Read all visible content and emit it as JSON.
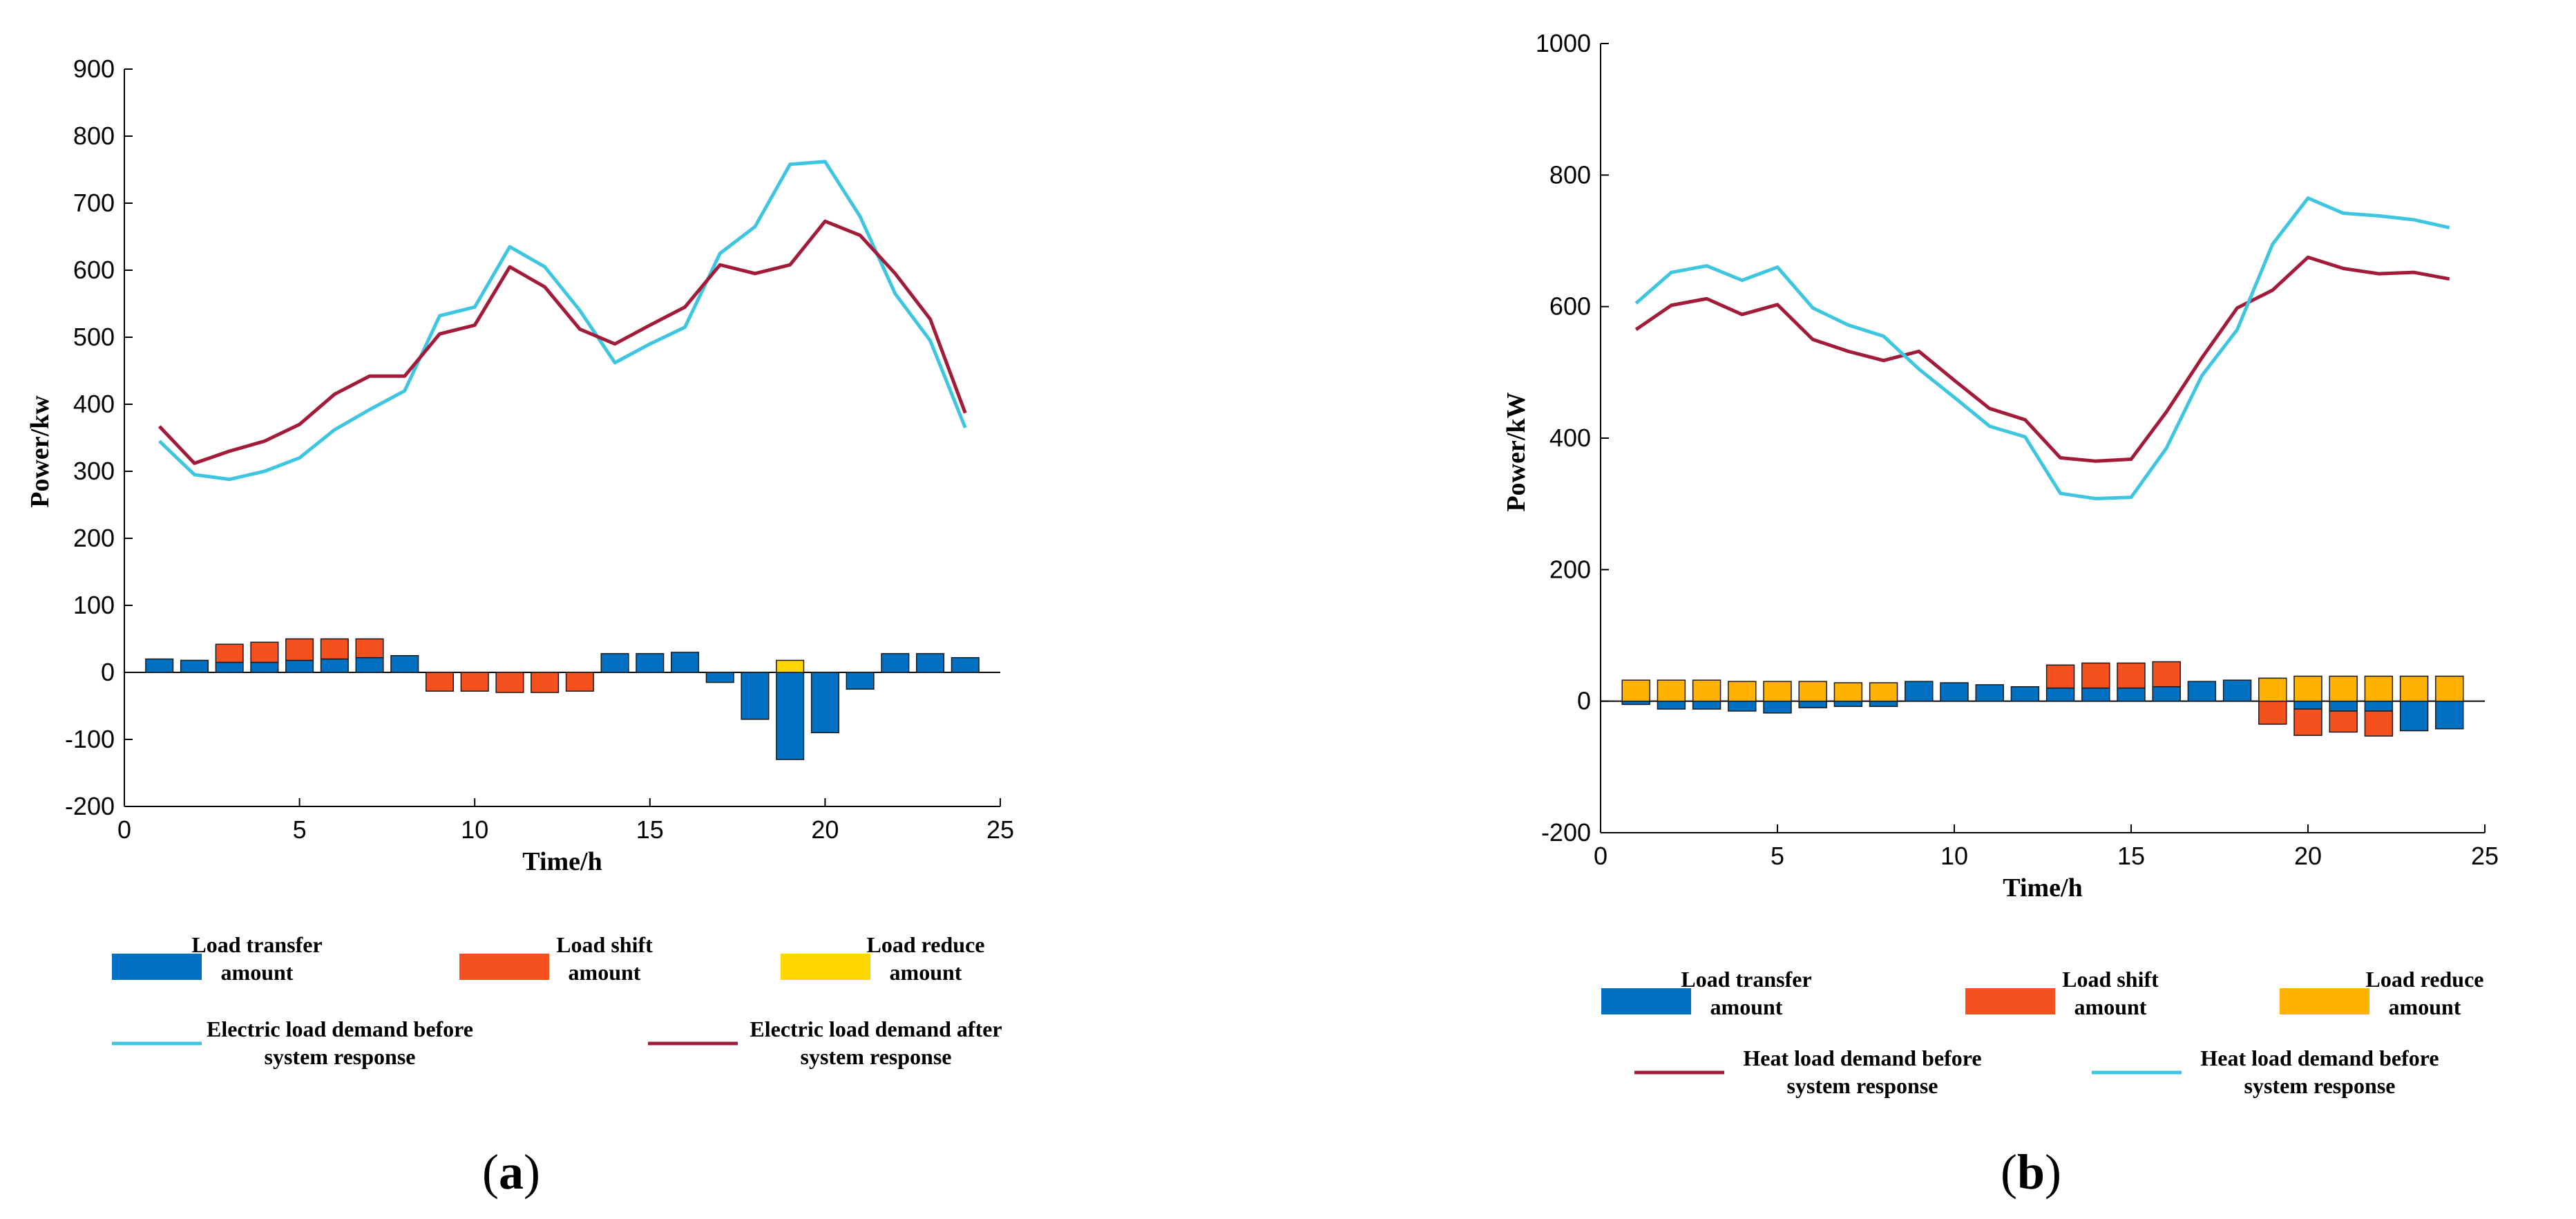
{
  "colors": {
    "transfer": "#0070C0",
    "shift": "#F4511E",
    "reduce_a": "#FFD700",
    "reduce_b": "#FFB300",
    "before": "#3EC6E0",
    "after": "#A21C3A"
  },
  "chart_data": [
    {
      "type": "bar",
      "panel": "a",
      "panel_label_open": "(",
      "panel_label_letter": "a",
      "panel_label_close": ")",
      "xlabel": "Time/h",
      "ylabel": "Power/kw",
      "xlim": [
        0,
        25
      ],
      "ylim": [
        -200,
        900
      ],
      "xticks": [
        0,
        5,
        10,
        15,
        20,
        25
      ],
      "yticks": [
        -200,
        -100,
        0,
        100,
        200,
        300,
        400,
        500,
        600,
        700,
        800,
        900
      ],
      "x": [
        1,
        2,
        3,
        4,
        5,
        6,
        7,
        8,
        9,
        10,
        11,
        12,
        13,
        14,
        15,
        16,
        17,
        18,
        19,
        20,
        21,
        22,
        23,
        24
      ],
      "stacked_series": [
        {
          "name": "Load transfer amount",
          "color_key": "transfer",
          "values": [
            20,
            18,
            15,
            15,
            18,
            20,
            22,
            25,
            0,
            0,
            0,
            0,
            0,
            28,
            28,
            30,
            -15,
            -70,
            -130,
            -90,
            -25,
            28,
            28,
            22
          ]
        },
        {
          "name": "Load shift amount",
          "color_key": "shift",
          "values": [
            0,
            0,
            27,
            30,
            32,
            30,
            28,
            0,
            -28,
            -28,
            -30,
            -30,
            -28,
            0,
            0,
            0,
            0,
            0,
            0,
            0,
            0,
            0,
            0,
            0
          ]
        },
        {
          "name": "Load reduce amount",
          "color_key": "reduce_a",
          "values": [
            0,
            0,
            0,
            0,
            0,
            0,
            0,
            0,
            0,
            0,
            0,
            0,
            0,
            0,
            0,
            0,
            0,
            0,
            18,
            0,
            0,
            0,
            0,
            0
          ]
        }
      ],
      "line_series": [
        {
          "name": "Electric load demand before system response",
          "color_key": "before",
          "values": [
            345,
            295,
            288,
            300,
            320,
            362,
            392,
            420,
            532,
            545,
            635,
            605,
            540,
            462,
            490,
            515,
            625,
            665,
            758,
            762,
            680,
            565,
            495,
            365
          ]
        },
        {
          "name": "Electric load demand after system response",
          "color_key": "after",
          "values": [
            367,
            312,
            330,
            345,
            370,
            415,
            442,
            442,
            505,
            518,
            605,
            575,
            512,
            490,
            518,
            545,
            608,
            595,
            608,
            673,
            652,
            595,
            527,
            387
          ]
        }
      ],
      "legend": [
        {
          "lines": [
            "Load transfer",
            "amount"
          ],
          "kind": "bar",
          "color_key": "transfer"
        },
        {
          "lines": [
            "Load shift",
            "amount"
          ],
          "kind": "bar",
          "color_key": "shift"
        },
        {
          "lines": [
            "Load reduce",
            "amount"
          ],
          "kind": "bar",
          "color_key": "reduce_a"
        },
        {
          "lines": [
            "Electric load demand before",
            "system response"
          ],
          "kind": "line",
          "color_key": "before"
        },
        {
          "lines": [
            "Electric load demand after",
            "system response"
          ],
          "kind": "line",
          "color_key": "after"
        }
      ]
    },
    {
      "type": "bar",
      "panel": "b",
      "panel_label_open": "(",
      "panel_label_letter": "b",
      "panel_label_close": ")",
      "xlabel": "Time/h",
      "ylabel": "Power/kW",
      "xlim": [
        0,
        25
      ],
      "ylim": [
        -200,
        1000
      ],
      "xticks": [
        0,
        5,
        10,
        15,
        20,
        25
      ],
      "yticks": [
        -200,
        0,
        200,
        400,
        600,
        800,
        1000
      ],
      "x": [
        1,
        2,
        3,
        4,
        5,
        6,
        7,
        8,
        9,
        10,
        11,
        12,
        13,
        14,
        15,
        16,
        17,
        18,
        19,
        20,
        21,
        22,
        23,
        24
      ],
      "stacked_series": [
        {
          "name": "Load transfer amount",
          "color_key": "transfer",
          "values": [
            -5,
            -12,
            -12,
            -15,
            -18,
            -10,
            -8,
            -8,
            30,
            28,
            25,
            22,
            20,
            20,
            20,
            22,
            30,
            32,
            0,
            -12,
            -15,
            -15,
            -45,
            -42
          ]
        },
        {
          "name": "Load shift amount",
          "color_key": "shift",
          "values": [
            0,
            0,
            0,
            0,
            0,
            0,
            0,
            0,
            0,
            0,
            0,
            0,
            35,
            38,
            38,
            38,
            0,
            0,
            -35,
            -40,
            -32,
            -38,
            0,
            0
          ]
        },
        {
          "name": "Load reduce amount",
          "color_key": "reduce_b",
          "values": [
            32,
            32,
            32,
            30,
            30,
            30,
            28,
            28,
            0,
            0,
            0,
            0,
            0,
            0,
            0,
            0,
            0,
            0,
            35,
            38,
            38,
            38,
            38,
            38
          ]
        }
      ],
      "line_series": [
        {
          "name": "Heat load demand before system response",
          "color_key": "after",
          "values": [
            565,
            602,
            612,
            588,
            603,
            550,
            532,
            518,
            532,
            488,
            445,
            428,
            370,
            365,
            368,
            440,
            522,
            598,
            625,
            675,
            658,
            650,
            652,
            642
          ]
        },
        {
          "name": "Heat load demand before system response",
          "color_key": "before",
          "values": [
            605,
            652,
            662,
            640,
            660,
            598,
            572,
            555,
            505,
            462,
            418,
            402,
            316,
            308,
            310,
            385,
            495,
            565,
            695,
            765,
            742,
            738,
            732,
            720
          ]
        }
      ],
      "legend": [
        {
          "lines": [
            "Load transfer",
            "amount"
          ],
          "kind": "bar",
          "color_key": "transfer"
        },
        {
          "lines": [
            "Load shift",
            "amount"
          ],
          "kind": "bar",
          "color_key": "shift"
        },
        {
          "lines": [
            "Load reduce",
            "amount"
          ],
          "kind": "bar",
          "color_key": "reduce_b"
        },
        {
          "lines": [
            "Heat load demand before",
            "system response"
          ],
          "kind": "line",
          "color_key": "after"
        },
        {
          "lines": [
            "Heat load demand before",
            "system response"
          ],
          "kind": "line",
          "color_key": "before"
        }
      ]
    }
  ]
}
